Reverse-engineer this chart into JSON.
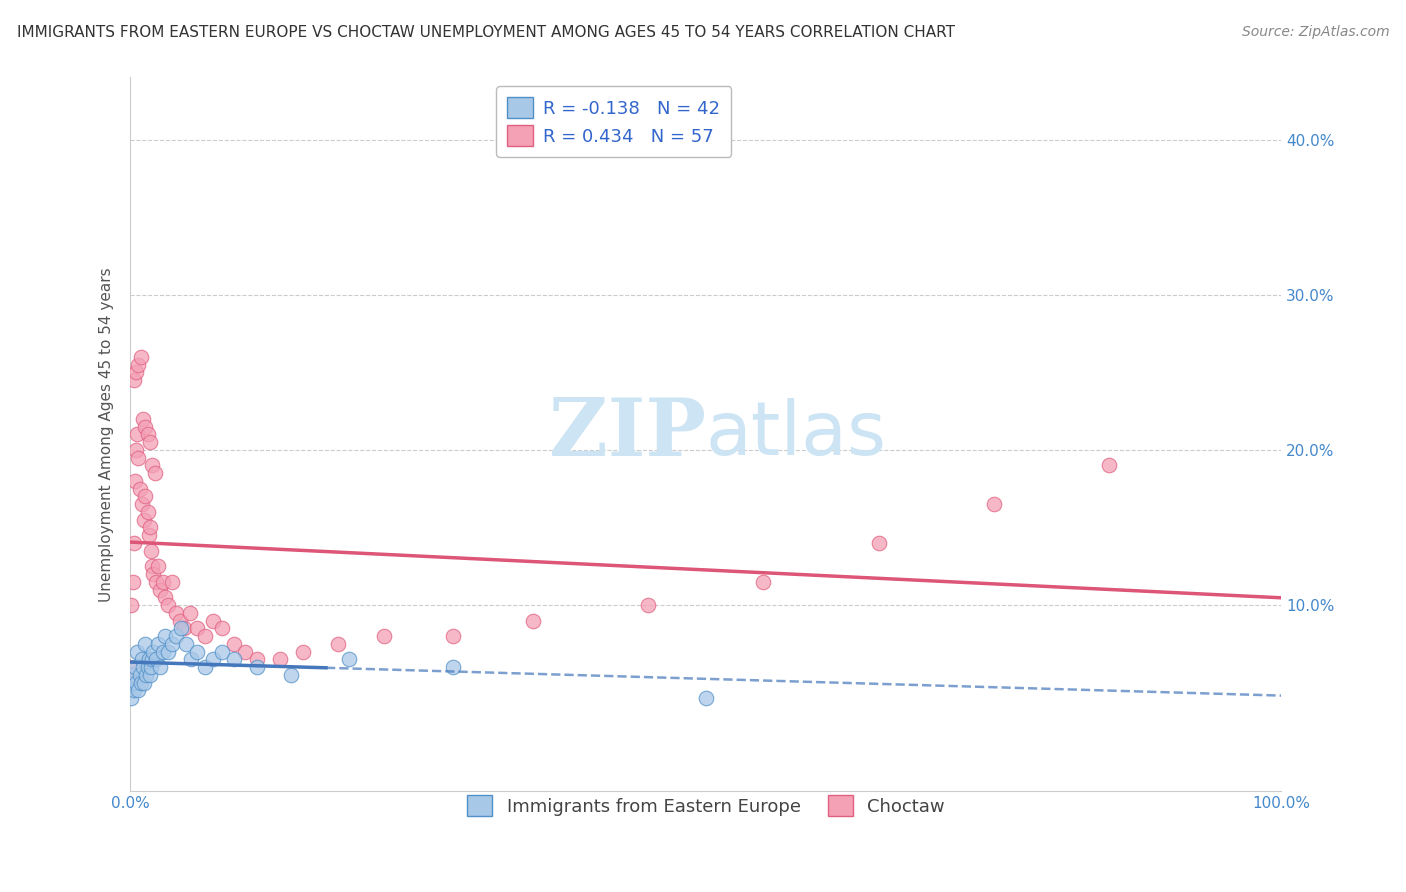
{
  "title": "IMMIGRANTS FROM EASTERN EUROPE VS CHOCTAW UNEMPLOYMENT AMONG AGES 45 TO 54 YEARS CORRELATION CHART",
  "source": "Source: ZipAtlas.com",
  "ylabel": "Unemployment Among Ages 45 to 54 years",
  "xlim": [
    0.0,
    1.0
  ],
  "ylim": [
    -0.02,
    0.44
  ],
  "ytick_vals": [
    0.0,
    0.1,
    0.2,
    0.3,
    0.4
  ],
  "ytick_labels_right": [
    "",
    "10.0%",
    "20.0%",
    "30.0%",
    "40.0%"
  ],
  "xtick_vals": [
    0.0,
    1.0
  ],
  "xtick_labels": [
    "0.0%",
    "100.0%"
  ],
  "legend_labels": [
    "Immigrants from Eastern Europe",
    "Choctaw"
  ],
  "R_blue": -0.138,
  "N_blue": 42,
  "R_pink": 0.434,
  "N_pink": 57,
  "blue_color": "#a8c8e8",
  "pink_color": "#f4a0b5",
  "blue_edge_color": "#5090c8",
  "pink_edge_color": "#e06080",
  "blue_line_color": "#4477bb",
  "pink_line_color": "#dd5577",
  "tick_color": "#4488cc",
  "watermark_color": "#cce4f4",
  "grid_color": "#cccccc",
  "title_color": "#333333",
  "ylabel_color": "#555555",
  "source_color": "#888888",
  "legend_text_color": "#3366cc",
  "blue_scatter_x": [
    0.0,
    0.001,
    0.002,
    0.003,
    0.004,
    0.005,
    0.006,
    0.007,
    0.008,
    0.009,
    0.01,
    0.011,
    0.012,
    0.013,
    0.014,
    0.015,
    0.016,
    0.017,
    0.018,
    0.019,
    0.02,
    0.022,
    0.024,
    0.026,
    0.028,
    0.03,
    0.033,
    0.036,
    0.04,
    0.044,
    0.048,
    0.053,
    0.058,
    0.065,
    0.072,
    0.08,
    0.09,
    0.11,
    0.14,
    0.19,
    0.28,
    0.5
  ],
  "blue_scatter_y": [
    0.05,
    0.04,
    0.055,
    0.045,
    0.06,
    0.05,
    0.07,
    0.045,
    0.055,
    0.05,
    0.065,
    0.06,
    0.05,
    0.075,
    0.055,
    0.06,
    0.065,
    0.055,
    0.06,
    0.065,
    0.07,
    0.065,
    0.075,
    0.06,
    0.07,
    0.08,
    0.07,
    0.075,
    0.08,
    0.085,
    0.075,
    0.065,
    0.07,
    0.06,
    0.065,
    0.07,
    0.065,
    0.06,
    0.055,
    0.065,
    0.06,
    0.04
  ],
  "pink_scatter_x": [
    0.0,
    0.001,
    0.002,
    0.003,
    0.004,
    0.005,
    0.006,
    0.007,
    0.008,
    0.01,
    0.012,
    0.013,
    0.015,
    0.016,
    0.017,
    0.018,
    0.019,
    0.02,
    0.022,
    0.024,
    0.026,
    0.028,
    0.03,
    0.033,
    0.036,
    0.04,
    0.043,
    0.047,
    0.052,
    0.058,
    0.065,
    0.072,
    0.08,
    0.09,
    0.1,
    0.11,
    0.13,
    0.15,
    0.18,
    0.22,
    0.28,
    0.35,
    0.45,
    0.55,
    0.65,
    0.75,
    0.85,
    0.003,
    0.005,
    0.007,
    0.009,
    0.011,
    0.013,
    0.015,
    0.017,
    0.019,
    0.021
  ],
  "pink_scatter_y": [
    0.06,
    0.1,
    0.115,
    0.14,
    0.18,
    0.2,
    0.21,
    0.195,
    0.175,
    0.165,
    0.155,
    0.17,
    0.16,
    0.145,
    0.15,
    0.135,
    0.125,
    0.12,
    0.115,
    0.125,
    0.11,
    0.115,
    0.105,
    0.1,
    0.115,
    0.095,
    0.09,
    0.085,
    0.095,
    0.085,
    0.08,
    0.09,
    0.085,
    0.075,
    0.07,
    0.065,
    0.065,
    0.07,
    0.075,
    0.08,
    0.08,
    0.09,
    0.1,
    0.115,
    0.14,
    0.165,
    0.19,
    0.245,
    0.25,
    0.255,
    0.26,
    0.22,
    0.215,
    0.21,
    0.205,
    0.19,
    0.185
  ],
  "title_fontsize": 11,
  "axis_label_fontsize": 11,
  "tick_fontsize": 11,
  "legend_fontsize": 13,
  "source_fontsize": 10,
  "marker_size": 110
}
